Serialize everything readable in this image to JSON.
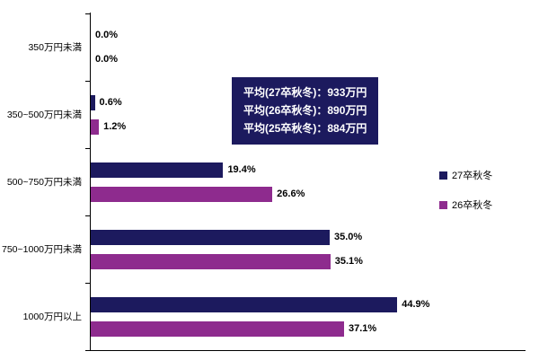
{
  "chart_data": {
    "type": "bar",
    "orientation": "horizontal",
    "title": "",
    "categories": [
      "350万円未満",
      "350~500万円未満",
      "500~750万円未満",
      "750~1000万円未満",
      "1000万円以上"
    ],
    "series": [
      {
        "name": "27卒秋冬",
        "color": "#1C1A5E",
        "values": [
          0.0,
          0.6,
          19.4,
          35.0,
          44.9
        ],
        "labels": [
          "0.0%",
          "0.6%",
          "19.4%",
          "35.0%",
          "44.9%"
        ]
      },
      {
        "name": "26卒秋冬",
        "color": "#8E2B8E",
        "values": [
          0.0,
          1.2,
          26.6,
          35.1,
          37.1
        ],
        "labels": [
          "0.0%",
          "1.2%",
          "26.6%",
          "35.1%",
          "37.1%"
        ]
      }
    ],
    "xlim": [
      0,
      50
    ],
    "grid": false,
    "legend_position": "right",
    "annotation": {
      "lines": [
        "平均(27卒秋冬)：933万円",
        "平均(26卒秋冬)：890万円",
        "平均(25卒秋冬)：884万円"
      ],
      "background": "#1C1A5E",
      "text_color": "#FFFFFF"
    }
  }
}
